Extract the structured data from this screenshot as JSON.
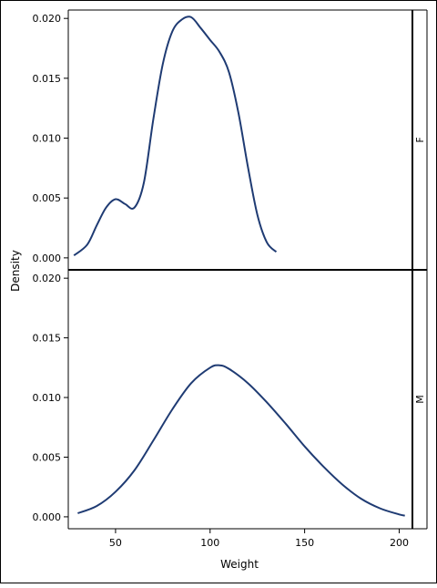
{
  "chart_data": {
    "type": "line",
    "xlabel": "Weight",
    "ylabel": "Density",
    "xlim": [
      25,
      207
    ],
    "x_ticks": [
      {
        "value": 50,
        "label": "50"
      },
      {
        "value": 100,
        "label": "100"
      },
      {
        "value": 150,
        "label": "150"
      },
      {
        "value": 200,
        "label": "200"
      }
    ],
    "ylim": [
      -0.001,
      0.0207
    ],
    "y_ticks": [
      {
        "value": 0.0,
        "label": "0.000"
      },
      {
        "value": 0.005,
        "label": "0.005"
      },
      {
        "value": 0.01,
        "label": "0.010"
      },
      {
        "value": 0.015,
        "label": "0.015"
      },
      {
        "value": 0.02,
        "label": "0.020"
      }
    ],
    "line_color": "#1f3b73",
    "panels": [
      {
        "strip_label": "F",
        "series": [
          {
            "x": [
              28,
              35,
              40,
              45,
              50,
              55,
              60,
              65,
              70,
              75,
              80,
              85,
              90,
              95,
              100,
              105,
              110,
              115,
              120,
              125,
              130,
              135
            ],
            "y": [
              0.0002,
              0.0011,
              0.0027,
              0.0042,
              0.0049,
              0.0045,
              0.0042,
              0.0063,
              0.0116,
              0.0162,
              0.0189,
              0.0199,
              0.0201,
              0.0192,
              0.0182,
              0.0172,
              0.0155,
              0.0121,
              0.0076,
              0.0036,
              0.0013,
              0.0005
            ]
          }
        ]
      },
      {
        "strip_label": "M",
        "series": [
          {
            "x": [
              30,
              40,
              50,
              60,
              70,
              80,
              90,
              100,
              105,
              110,
              120,
              130,
              140,
              150,
              160,
              170,
              180,
              190,
              200,
              203
            ],
            "y": [
              0.0003,
              0.0009,
              0.0021,
              0.0039,
              0.0064,
              0.009,
              0.0112,
              0.0125,
              0.0127,
              0.0124,
              0.0112,
              0.0096,
              0.0078,
              0.0059,
              0.0042,
              0.0027,
              0.0015,
              0.0007,
              0.0002,
              0.0001
            ]
          }
        ]
      }
    ]
  }
}
